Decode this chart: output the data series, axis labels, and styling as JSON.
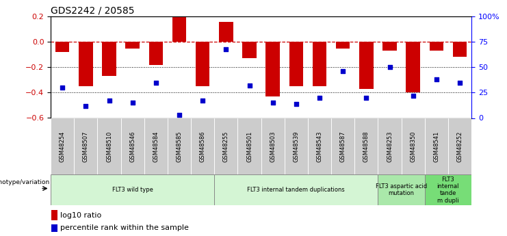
{
  "title": "GDS2242 / 20585",
  "samples": [
    "GSM48254",
    "GSM48507",
    "GSM48510",
    "GSM48546",
    "GSM48584",
    "GSM48585",
    "GSM48586",
    "GSM48255",
    "GSM48501",
    "GSM48503",
    "GSM48539",
    "GSM48543",
    "GSM48587",
    "GSM48588",
    "GSM48253",
    "GSM48350",
    "GSM48541",
    "GSM48252"
  ],
  "log10_ratio": [
    -0.08,
    -0.35,
    -0.27,
    -0.05,
    -0.18,
    0.21,
    -0.35,
    0.16,
    -0.13,
    -0.43,
    -0.35,
    -0.35,
    -0.05,
    -0.37,
    -0.07,
    -0.4,
    -0.07,
    -0.12
  ],
  "percentile_rank": [
    30,
    12,
    17,
    15,
    35,
    3,
    17,
    68,
    32,
    15,
    14,
    20,
    46,
    20,
    50,
    22,
    38,
    35
  ],
  "groups": [
    {
      "label": "FLT3 wild type",
      "start": 0,
      "end": 6,
      "color": "#d4f5d4"
    },
    {
      "label": "FLT3 internal tandem duplications",
      "start": 7,
      "end": 13,
      "color": "#d4f5d4"
    },
    {
      "label": "FLT3 aspartic acid\nmutation",
      "start": 14,
      "end": 15,
      "color": "#aae8aa"
    },
    {
      "label": "FLT3\ninternal\ntande\nm dupli",
      "start": 16,
      "end": 17,
      "color": "#77dd77"
    }
  ],
  "bar_color": "#cc0000",
  "dot_color": "#0000cc",
  "ref_line_color": "#cc0000",
  "grid_color": "#000000",
  "ylim_left": [
    -0.6,
    0.2
  ],
  "ylim_right": [
    0,
    100
  ],
  "ylabel_left_ticks": [
    -0.6,
    -0.4,
    -0.2,
    0.0,
    0.2
  ],
  "ylabel_right_ticks": [
    0,
    25,
    50,
    75,
    100
  ],
  "ylabel_right_labels": [
    "0",
    "25",
    "50",
    "75",
    "100%"
  ],
  "legend_items": [
    {
      "label": "log10 ratio",
      "color": "#cc0000"
    },
    {
      "label": "percentile rank within the sample",
      "color": "#0000cc"
    }
  ],
  "genotype_label": "genotype/variation"
}
